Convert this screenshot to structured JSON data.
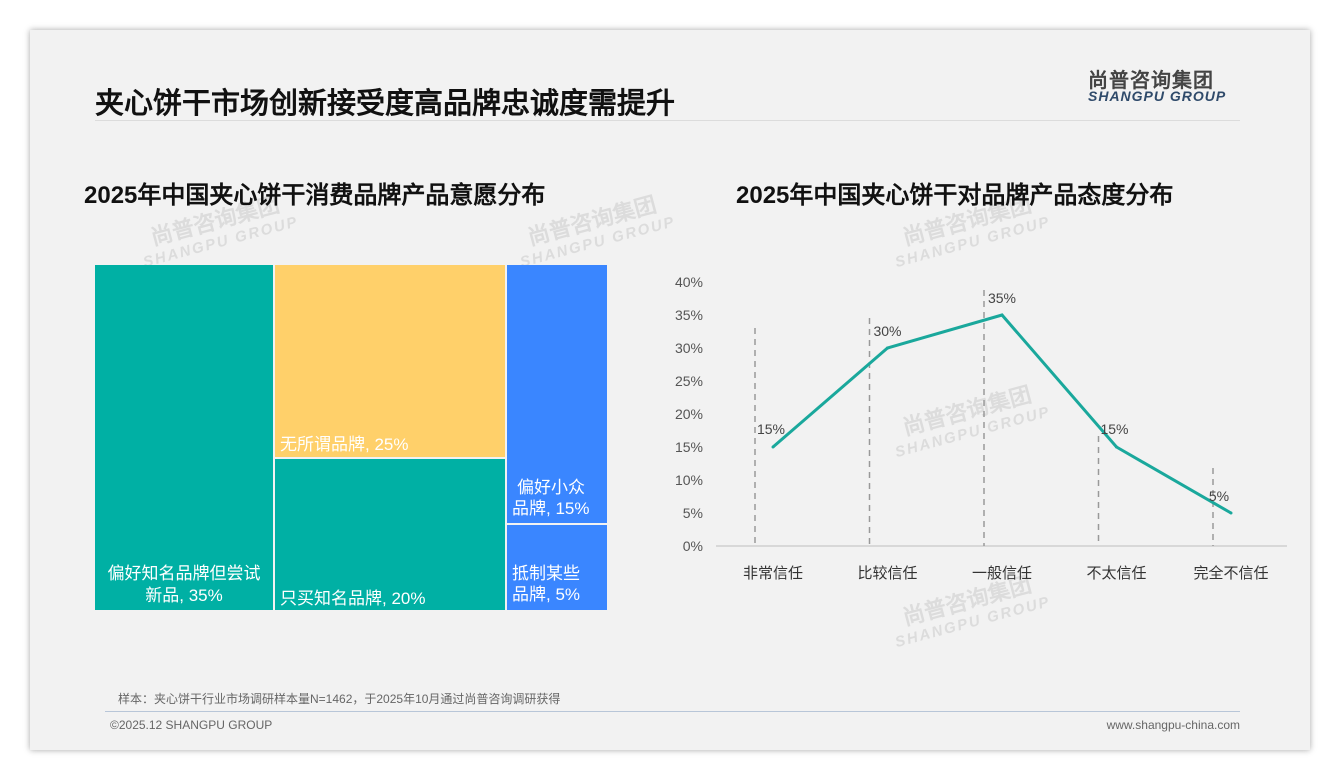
{
  "header": {
    "title": "夹心饼干市场创新接受度高品牌忠诚度需提升",
    "logo_cn": "尚普咨询集团",
    "logo_en": "SHANGPU GROUP"
  },
  "watermark": {
    "cn": "尚普咨询集团",
    "en": "SHANGPU GROUP"
  },
  "left": {
    "title": "2025年中国夹心饼干消费品牌产品意愿分布"
  },
  "right": {
    "title": "2025年中国夹心饼干对品牌产品态度分布"
  },
  "chart_data": [
    {
      "type": "treemap",
      "title": "2025年中国夹心饼干消费品牌产品意愿分布",
      "items": [
        {
          "label": "偏好知名品牌但尝试新品, 35%",
          "line1": "偏好知名品牌但尝试",
          "line2": "新品, 35%",
          "value": 35,
          "color": "#00b0a4"
        },
        {
          "label": "无所谓品牌, 25%",
          "value": 25,
          "color": "#ffd06a"
        },
        {
          "label": "只买知名品牌, 20%",
          "value": 20,
          "color": "#00b0a4"
        },
        {
          "label": "偏好小众品牌, 15%",
          "line1": "偏好小众",
          "line2": "品牌, 15%",
          "value": 15,
          "color": "#3a86ff"
        },
        {
          "label": "抵制某些品牌, 5%",
          "line1": "抵制某些",
          "line2": "品牌, 5%",
          "value": 5,
          "color": "#3a86ff"
        }
      ]
    },
    {
      "type": "line",
      "title": "2025年中国夹心饼干对品牌产品态度分布",
      "categories": [
        "非常信任",
        "比较信任",
        "一般信任",
        "不太信任",
        "完全不信任"
      ],
      "values": [
        15,
        30,
        35,
        15,
        5
      ],
      "data_labels": [
        "15%",
        "30%",
        "35%",
        "15%",
        "5%"
      ],
      "ylim": [
        0,
        40
      ],
      "yticks": [
        "0%",
        "5%",
        "10%",
        "15%",
        "20%",
        "25%",
        "30%",
        "35%",
        "40%"
      ],
      "color": "#1aa89c"
    }
  ],
  "footer": {
    "note": "样本：夹心饼干行业市场调研样本量N=1462，于2025年10月通过尚普咨询调研获得",
    "copyright": "©2025.12 SHANGPU GROUP",
    "url": "www.shangpu-china.com"
  }
}
